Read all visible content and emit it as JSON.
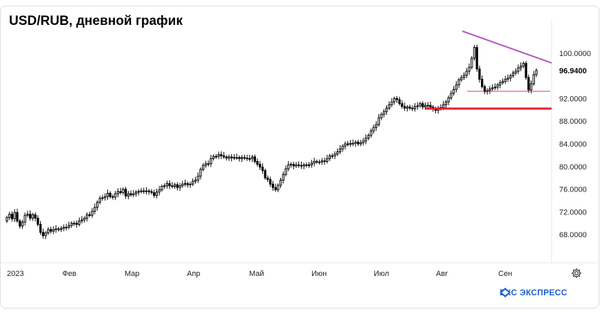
{
  "chart_data": {
    "type": "candlestick",
    "title": "USD/RUB, дневной график",
    "ylim": [
      64,
      104
    ],
    "y_ticks": [
      {
        "value": 100,
        "label": "100.0000"
      },
      {
        "value": 92,
        "label": "92.0000"
      },
      {
        "value": 88,
        "label": "88.0000"
      },
      {
        "value": 84,
        "label": "84.0000"
      },
      {
        "value": 80,
        "label": "80.0000"
      },
      {
        "value": 76,
        "label": "76.0000"
      },
      {
        "value": 72,
        "label": "72.0000"
      },
      {
        "value": 68,
        "label": "68.0000"
      }
    ],
    "last_price": {
      "value": 96.94,
      "label": "96.9400"
    },
    "x_months": [
      {
        "label": "2023",
        "month": 1
      },
      {
        "label": "Фев",
        "month": 2
      },
      {
        "label": "Мар",
        "month": 3
      },
      {
        "label": "Апр",
        "month": 4
      },
      {
        "label": "Май",
        "month": 5
      },
      {
        "label": "Июн",
        "month": 6
      },
      {
        "label": "Июл",
        "month": 7
      },
      {
        "label": "Авг",
        "month": 8
      },
      {
        "label": "Сен",
        "month": 9
      }
    ],
    "closes": [
      71.0,
      71.6,
      70.8,
      71.9,
      70.4,
      69.5,
      70.2,
      71.4,
      71.6,
      70.9,
      71.5,
      70.9,
      69.8,
      68.4,
      67.8,
      68.3,
      68.9,
      68.6,
      68.9,
      69.0,
      68.9,
      69.1,
      69.3,
      69.3,
      69.6,
      70.0,
      70.0,
      69.8,
      70.4,
      70.6,
      70.9,
      71.5,
      71.4,
      72.1,
      72.8,
      73.7,
      74.4,
      74.5,
      74.7,
      75.3,
      74.7,
      74.6,
      75.2,
      75.6,
      75.4,
      76.0,
      74.8,
      75.2,
      75.0,
      75.2,
      75.5,
      75.6,
      75.7,
      75.6,
      75.7,
      75.6,
      75.4,
      74.9,
      75.5,
      75.9,
      76.5,
      76.6,
      77.0,
      76.6,
      76.5,
      76.8,
      76.3,
      76.6,
      76.9,
      77.0,
      76.8,
      76.9,
      77.4,
      77.6,
      78.3,
      79.5,
      80.2,
      80.5,
      80.5,
      81.4,
      81.8,
      81.8,
      82.1,
      81.9,
      81.7,
      81.5,
      81.7,
      81.5,
      81.6,
      81.6,
      81.4,
      81.6,
      81.5,
      81.4,
      81.4,
      81.7,
      80.9,
      80.4,
      79.9,
      79.3,
      78.0,
      77.7,
      76.9,
      76.3,
      75.9,
      76.7,
      77.6,
      78.6,
      79.6,
      80.3,
      80.4,
      80.1,
      80.3,
      80.2,
      80.1,
      80.3,
      80.2,
      80.3,
      80.6,
      80.9,
      80.8,
      80.8,
      81.0,
      80.9,
      81.4,
      81.9,
      81.9,
      82.2,
      82.6,
      83.1,
      83.6,
      84.0,
      83.9,
      84.1,
      84.1,
      84.3,
      84.0,
      84.2,
      84.5,
      85.0,
      85.5,
      86.3,
      86.9,
      87.4,
      88.6,
      89.2,
      89.7,
      90.3,
      90.9,
      91.4,
      92.0,
      91.8,
      91.1,
      90.6,
      90.3,
      90.5,
      90.3,
      90.2,
      90.6,
      90.7,
      91.1,
      90.5,
      90.8,
      90.8,
      90.5,
      90.1,
      89.9,
      90.2,
      90.4,
      90.9,
      91.4,
      92.1,
      92.9,
      93.6,
      94.4,
      95.3,
      95.7,
      96.1,
      96.8,
      97.5,
      99.1,
      101.0,
      97.2,
      95.4,
      94.1,
      93.2,
      93.4,
      93.7,
      93.9,
      94.0,
      94.4,
      94.8,
      95.0,
      95.4,
      95.6,
      96.0,
      96.5,
      96.8,
      97.4,
      97.7,
      98.2,
      95.7,
      93.5,
      94.6,
      96.2,
      96.94
    ]
  },
  "logo": {
    "text": "БКС ЭКСПРЕСС"
  },
  "colors": {
    "trendline": "#b45bc0",
    "support": "#e41e2b",
    "minor_support": "#d43c3c",
    "candle": "#000000",
    "logo": "#1a5fd1"
  },
  "icons": {
    "settings": "gear-icon",
    "logo": "bcs-logo-icon"
  }
}
